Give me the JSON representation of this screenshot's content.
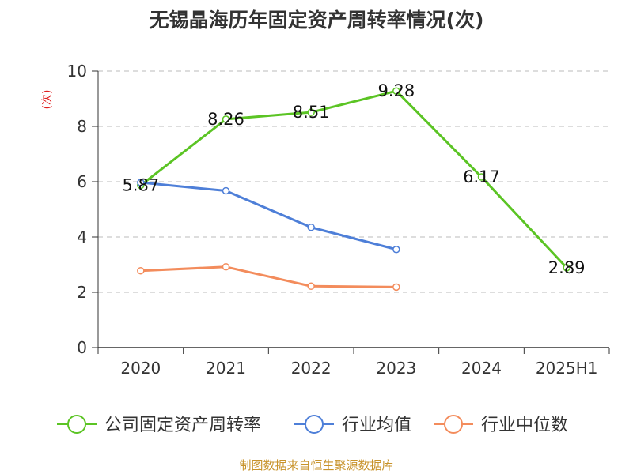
{
  "chart_data": {
    "type": "line",
    "title": "无锡晶海历年固定资产周转率情况(次)",
    "ylabel": "(次)",
    "ylim": [
      0,
      10
    ],
    "yticks": [
      "0",
      "2",
      "4",
      "6",
      "8",
      "10"
    ],
    "categories": [
      "2020",
      "2021",
      "2022",
      "2023",
      "2024",
      "2025H1"
    ],
    "grid": "horizontal-dashed",
    "legend_position": "bottom",
    "series": [
      {
        "name": "公司固定资产周转率",
        "color": "#5bc424",
        "values": [
          5.87,
          8.26,
          8.51,
          9.28,
          6.17,
          2.89
        ],
        "labels": [
          "5.87",
          "8.26",
          "8.51",
          "9.28",
          "6.17",
          "2.89"
        ]
      },
      {
        "name": "行业均值",
        "color": "#4e7fd8",
        "values": [
          5.97,
          5.67,
          4.35,
          3.55,
          null,
          null
        ]
      },
      {
        "name": "行业中位数",
        "color": "#f38c5c",
        "values": [
          2.78,
          2.92,
          2.22,
          2.19,
          null,
          null
        ]
      }
    ],
    "source": "制图数据来自恒生聚源数据库"
  }
}
